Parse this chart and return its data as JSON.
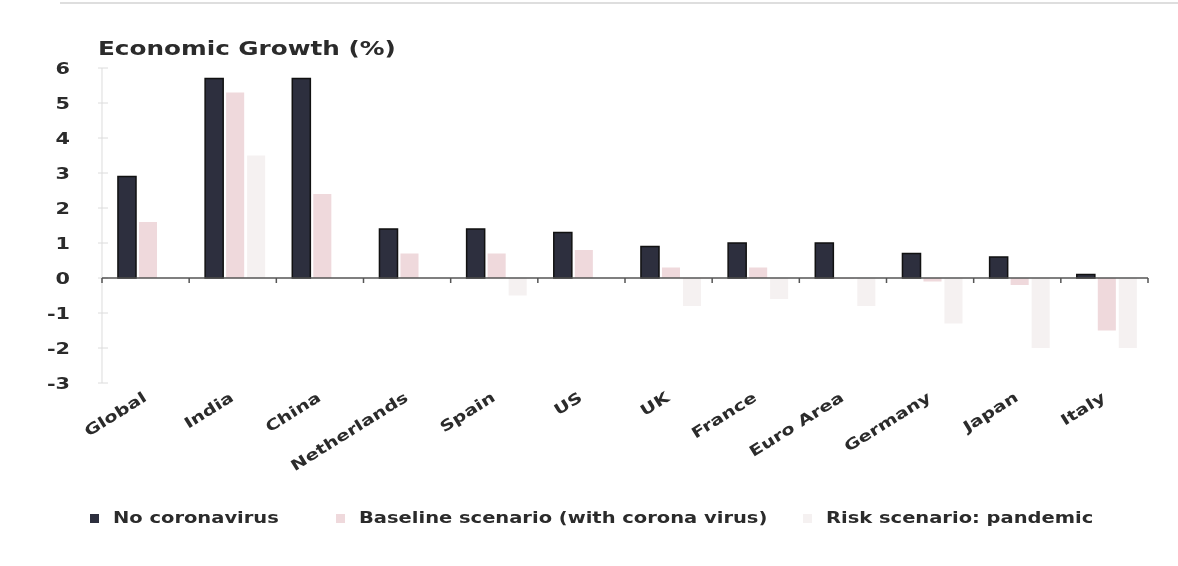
{
  "chart_data": {
    "type": "bar",
    "title": "Economic Growth (%)",
    "categories": [
      "Global",
      "India",
      "China",
      "Netherlands",
      "Spain",
      "US",
      "UK",
      "France",
      "Euro Area",
      "Germany",
      "Japan",
      "Italy"
    ],
    "series": [
      {
        "name": "No coronavirus",
        "color": "#2d2f3e",
        "values": [
          2.9,
          5.7,
          5.7,
          1.4,
          1.4,
          1.3,
          0.9,
          1.0,
          1.0,
          0.7,
          0.6,
          0.1
        ]
      },
      {
        "name": "Baseline scenario (with corona virus)",
        "color": "#efd9dc",
        "values": [
          1.6,
          5.3,
          2.4,
          0.7,
          0.7,
          0.8,
          0.3,
          0.3,
          0.0,
          -0.1,
          -0.2,
          -1.5
        ]
      },
      {
        "name": "Risk scenario: pandemic",
        "color": "#f5f1f1",
        "values": [
          null,
          3.5,
          null,
          null,
          -0.5,
          null,
          -0.8,
          -0.6,
          -0.8,
          -1.3,
          -2.0,
          -2.0
        ]
      }
    ],
    "ylim": [
      -3,
      6
    ],
    "yticks": [
      -3,
      -2,
      -1,
      0,
      1,
      2,
      3,
      4,
      5,
      6
    ],
    "legend": "bottom"
  }
}
